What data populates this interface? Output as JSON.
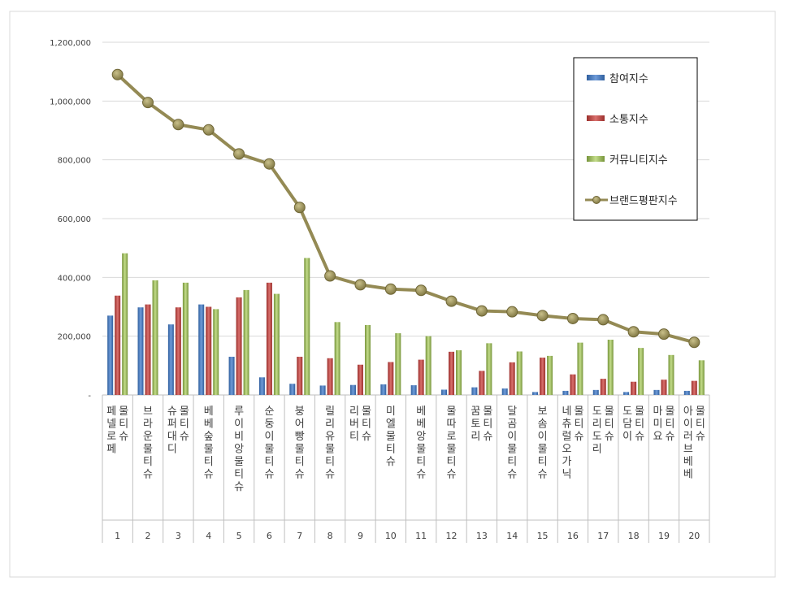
{
  "chart_data": {
    "type": "bar",
    "categories": [
      "페넬로페 물티슈",
      "브라운물티슈",
      "슈퍼대디 물티슈",
      "베베숲물티슈",
      "루이비앙물티슈",
      "순둥이물티슈",
      "붕어빵물티슈",
      "릴리유물티슈",
      "리버티 물티슈",
      "미엘물티슈",
      "베베앙물티슈",
      "물따로물티슈",
      "꿈토리 물티슈",
      "달곰이물티슈",
      "보솜이물티슈",
      "네츄럴오가닉 물티슈",
      "도리도리 물티슈",
      "도담이 물티슈",
      "마미요 물티슈",
      "아이러브베베 물티슈"
    ],
    "ranks": [
      "1",
      "2",
      "3",
      "4",
      "5",
      "6",
      "7",
      "8",
      "9",
      "10",
      "11",
      "12",
      "13",
      "14",
      "15",
      "16",
      "17",
      "18",
      "19",
      "20"
    ],
    "series": [
      {
        "name": "참여지수",
        "kind": "bar",
        "color": "#4f81bd",
        "values": [
          270000,
          298000,
          240000,
          308000,
          130000,
          60000,
          38000,
          32000,
          34000,
          36000,
          33000,
          18000,
          26000,
          22000,
          10000,
          14000,
          17000,
          10000,
          17000,
          14000
        ]
      },
      {
        "name": "소통지수",
        "kind": "bar",
        "color": "#c0504d",
        "values": [
          338000,
          308000,
          298000,
          300000,
          332000,
          382000,
          130000,
          125000,
          103000,
          112000,
          120000,
          147000,
          82000,
          111000,
          127000,
          70000,
          55000,
          45000,
          52000,
          48000
        ]
      },
      {
        "name": "커뮤니티지수",
        "kind": "bar",
        "color": "#9bbb59",
        "values": [
          482000,
          390000,
          382000,
          292000,
          357000,
          344000,
          466000,
          248000,
          238000,
          210000,
          200000,
          152000,
          176000,
          148000,
          133000,
          178000,
          188000,
          160000,
          136000,
          118000
        ]
      },
      {
        "name": "브랜드평판지수",
        "kind": "line",
        "color": "#948a54",
        "values": [
          1090000,
          995000,
          920000,
          902000,
          820000,
          786000,
          638000,
          405000,
          375000,
          360000,
          356000,
          319000,
          286000,
          283000,
          270000,
          260000,
          256000,
          215000,
          207000,
          179000
        ]
      }
    ],
    "y_ticks": [
      {
        "value": 0,
        "label": "-"
      },
      {
        "value": 200000,
        "label": "200,000"
      },
      {
        "value": 400000,
        "label": "400,000"
      },
      {
        "value": 600000,
        "label": "600,000"
      },
      {
        "value": 800000,
        "label": "800,000"
      },
      {
        "value": 1000000,
        "label": "1,000,000"
      },
      {
        "value": 1200000,
        "label": "1,200,000"
      }
    ],
    "ylim": [
      0,
      1200000
    ],
    "title": "",
    "xlabel": "",
    "ylabel": "",
    "grid": true,
    "legend_position": "top-right"
  }
}
